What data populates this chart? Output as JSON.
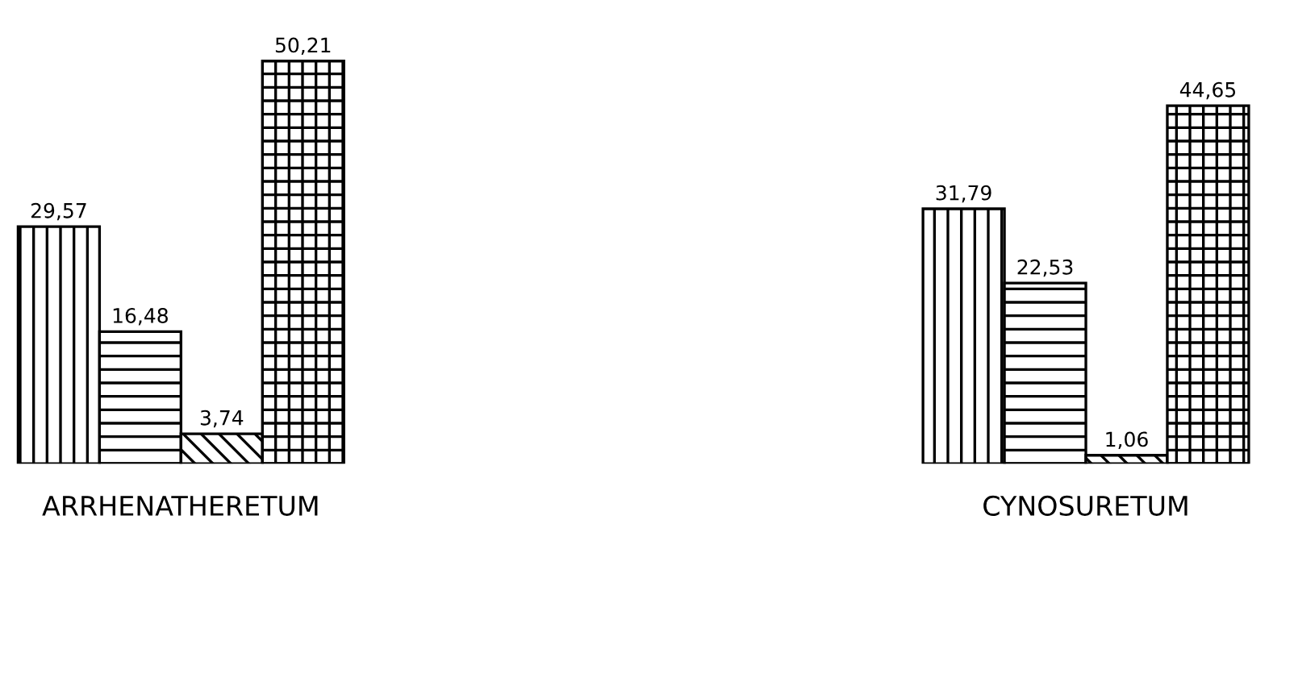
{
  "chart_data": {
    "type": "bar",
    "categories": [
      "ARRHENATHERETUM",
      "CYNOSURETUM"
    ],
    "series": [
      {
        "color": "#000000",
        "values": [
          29.57,
          31.79
        ],
        "value_labels": [
          "29,57",
          "31,79"
        ]
      },
      {
        "color": "#000000",
        "values": [
          16.48,
          22.53
        ],
        "value_labels": [
          "16,48",
          "22,53"
        ]
      },
      {
        "color": "#000000",
        "values": [
          3.74,
          1.06
        ],
        "value_labels": [
          "3,74",
          "1,06"
        ]
      },
      {
        "color": "#000000",
        "values": [
          50.21,
          44.65
        ],
        "value_labels": [
          "50,21",
          "44,65"
        ]
      }
    ],
    "grid": false,
    "legend": false
  }
}
